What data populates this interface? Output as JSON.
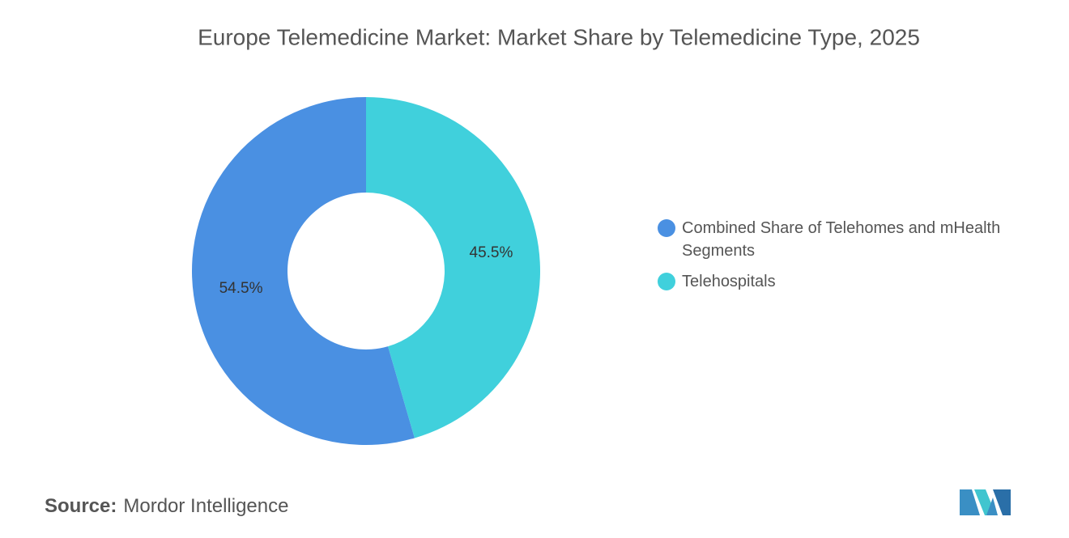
{
  "chart_data": {
    "type": "pie",
    "donut": true,
    "title": "Europe Telemedicine Market: Market Share by Telemedicine Type, 2025",
    "categories": [
      "Combined Share of Telehomes and mHealth Segments",
      "Telehospitals"
    ],
    "values": [
      54.5,
      45.5
    ],
    "value_labels": [
      "54.5%",
      "45.5%"
    ],
    "colors": [
      "#4a90e2",
      "#40d0dc"
    ],
    "legend": "right"
  },
  "footer": {
    "source_label": "Source:",
    "source": "Mordor Intelligence"
  }
}
